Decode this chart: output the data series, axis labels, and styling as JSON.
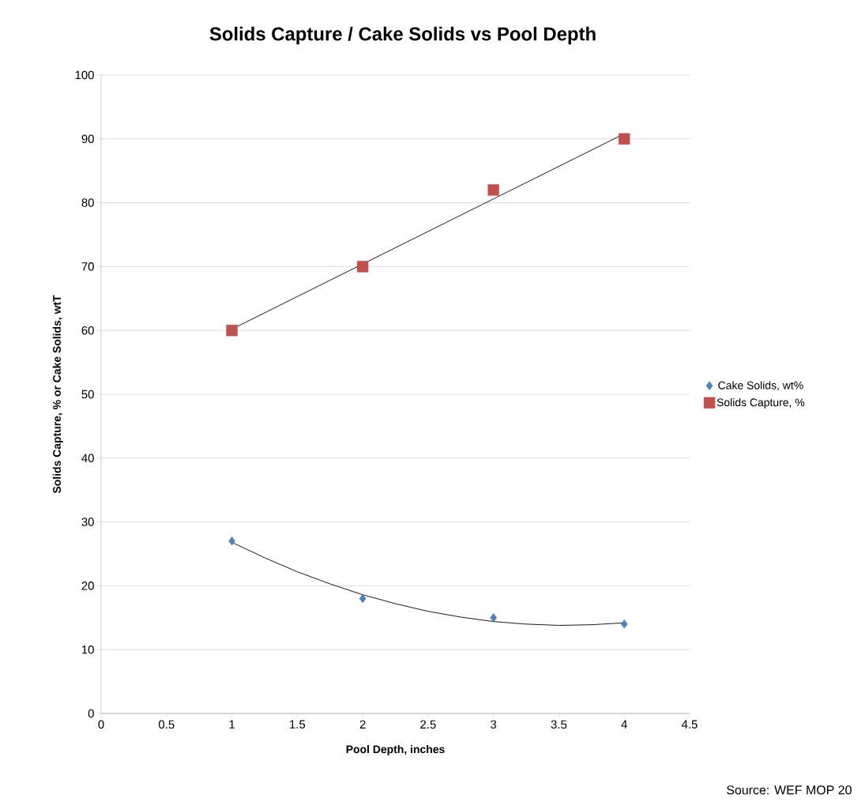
{
  "chart_data": {
    "type": "scatter",
    "title": "Solids Capture / Cake Solids vs Pool Depth",
    "xlabel": "Pool Depth, inches",
    "ylabel": "Solids Capture, % or Cake Solids, wtT",
    "x": [
      1,
      2,
      3,
      4
    ],
    "series": [
      {
        "name": "Cake Solids, wt%",
        "color": "#4f81bd",
        "marker": "diamond",
        "values": [
          27,
          18,
          15,
          14
        ]
      },
      {
        "name": "Solids Capture, %",
        "color": "#c0504d",
        "marker": "square",
        "values": [
          60,
          70,
          82,
          90
        ]
      },
      {
        "type": "line",
        "color": "#000000",
        "marker": "none",
        "x": [
          1,
          1.25,
          1.5,
          1.75,
          2,
          2.25,
          2.5,
          2.75,
          3,
          3.25,
          3.5,
          3.75,
          4
        ],
        "values": [
          26.8,
          24.4,
          22.2,
          20.3,
          18.6,
          17.2,
          16.0,
          15.1,
          14.4,
          14.0,
          13.8,
          13.9,
          14.2
        ]
      },
      {
        "type": "line",
        "color": "#000000",
        "marker": "none",
        "x": [
          1,
          4
        ],
        "values": [
          60.2,
          90.8
        ]
      }
    ],
    "xlim": [
      0,
      4.5
    ],
    "xticks": [
      0,
      0.5,
      1,
      1.5,
      2,
      2.5,
      3,
      3.5,
      4,
      4.5
    ],
    "ylim": [
      0,
      100
    ],
    "yticks": [
      0,
      10,
      20,
      30,
      40,
      50,
      60,
      70,
      80,
      90,
      100
    ],
    "grid": "y",
    "legend": "right",
    "annotations": [
      "Source: WEF MOP 20"
    ]
  }
}
